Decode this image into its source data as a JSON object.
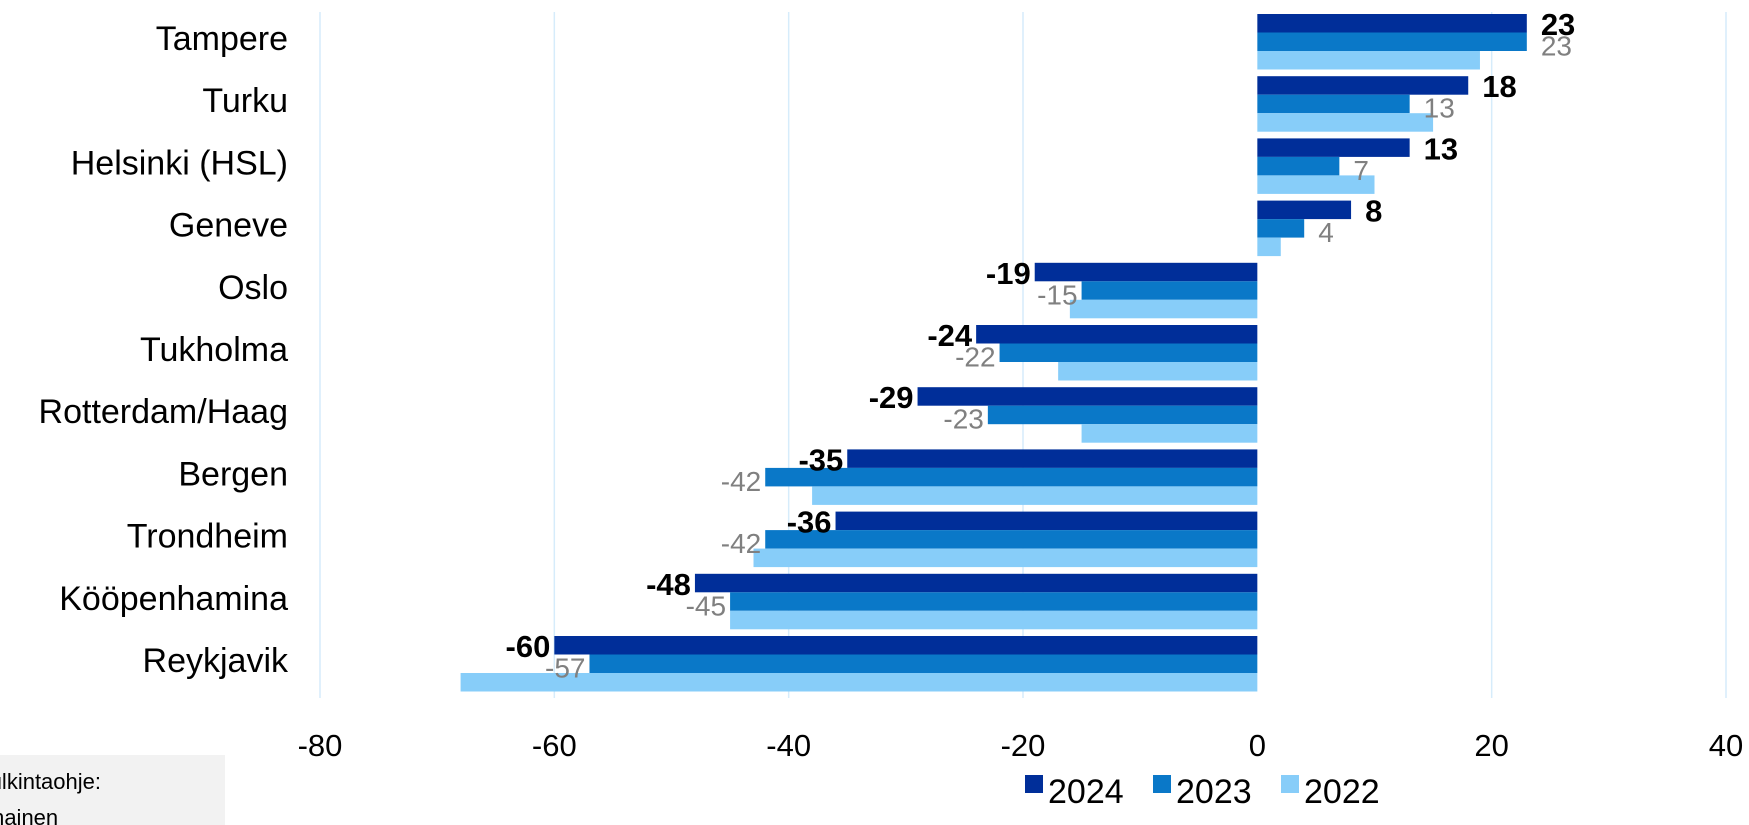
{
  "chart_data": {
    "type": "bar",
    "orientation": "horizontal",
    "categories": [
      "Tampere",
      "Turku",
      "Helsinki (HSL)",
      "Geneve",
      "Oslo",
      "Tukholma",
      "Rotterdam/Haag",
      "Bergen",
      "Trondheim",
      "Kööpenhamina",
      "Reykjavik"
    ],
    "series": [
      {
        "name": "2024",
        "color": "#002e99",
        "values": [
          23,
          18,
          13,
          8,
          -19,
          -24,
          -29,
          -35,
          -36,
          -48,
          -60
        ],
        "labels_shown": true
      },
      {
        "name": "2023",
        "color": "#0a78c8",
        "values": [
          23,
          13,
          7,
          4,
          -15,
          -22,
          -23,
          -42,
          -42,
          -45,
          -57
        ],
        "labels_shown": true
      },
      {
        "name": "2022",
        "color": "#87cdf9",
        "values": [
          19,
          15,
          10,
          2,
          -16,
          -17,
          -15,
          -38,
          -43,
          -45,
          -68
        ],
        "labels_shown": false
      }
    ],
    "xlim": [
      -80,
      40
    ],
    "xticks": [
      -80,
      -60,
      -40,
      -20,
      0,
      20,
      40
    ],
    "grid": true,
    "legend": "bottom-right",
    "title": "",
    "xlabel": "",
    "ylabel": ""
  },
  "note": {
    "line1": "sen tulkintaohje:",
    "line2": "mainen"
  }
}
